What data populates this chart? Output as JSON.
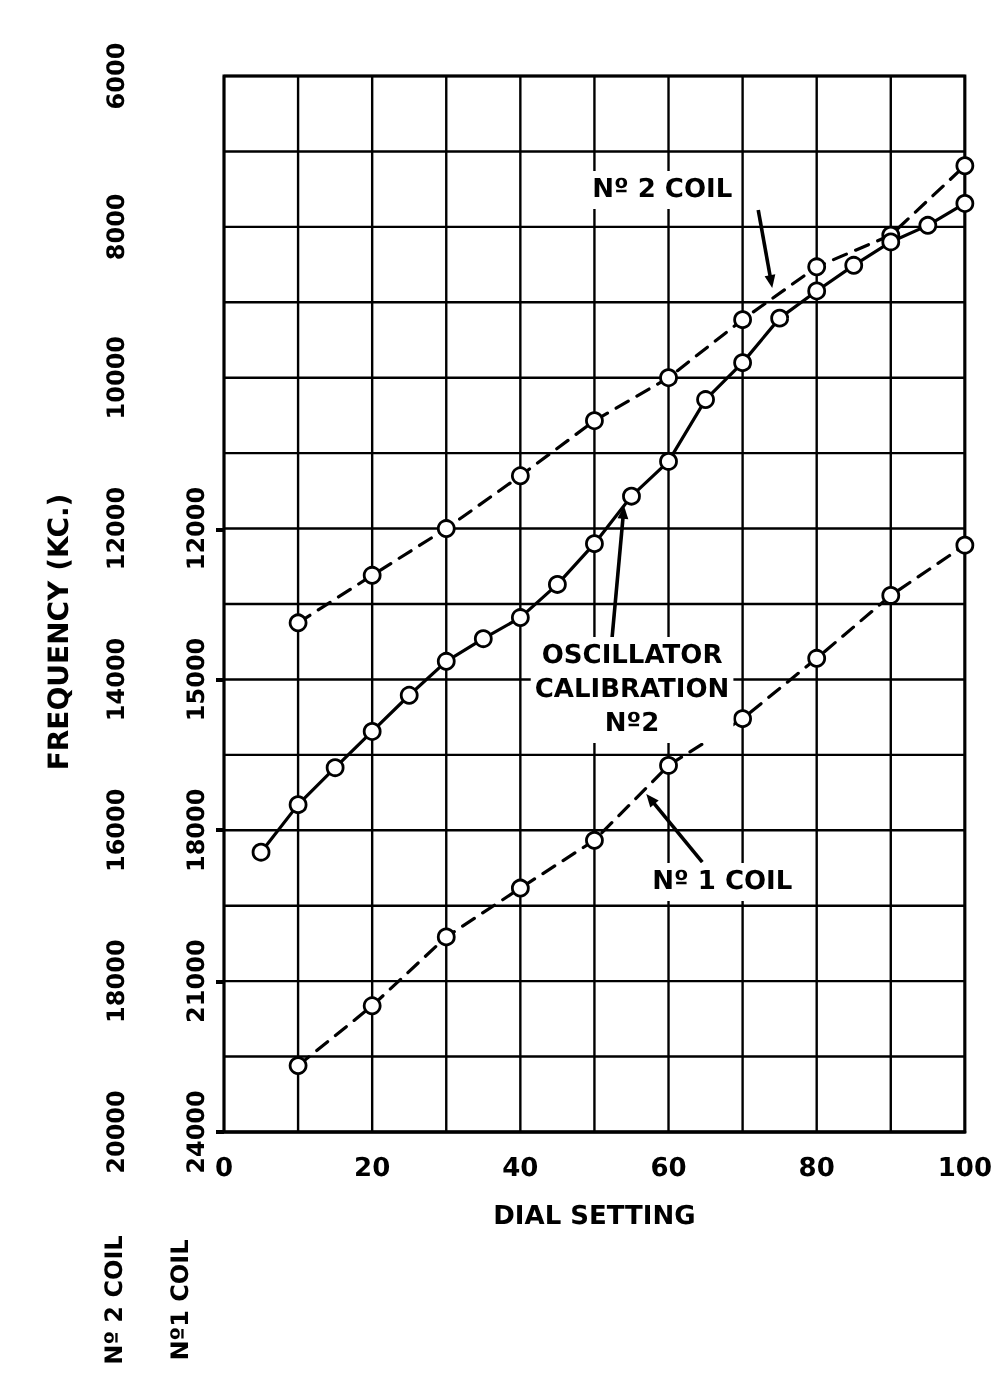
{
  "chart_data": {
    "type": "line",
    "xlabel": "DIAL SETTING",
    "ylabel": "FREQUENCY (KC.)",
    "annotations": [
      "Nº 2 COIL",
      "Nº1 COIL",
      {
        "text": "Nº 2 COIL",
        "x": 74,
        "y": 8810
      },
      {
        "text": "OSCILLATOR\nCALIBRATION\nNº2",
        "x": 54,
        "y": 11700
      },
      {
        "text": "Nº 1 COIL",
        "x": 57,
        "y": 15520
      }
    ],
    "xlim": [
      0,
      100
    ],
    "xticks": [
      0,
      {
        "value": 10,
        "label": null
      },
      20,
      {
        "value": 30,
        "label": null
      },
      40,
      {
        "value": 50,
        "label": null
      },
      60,
      {
        "value": 70,
        "label": null
      },
      80,
      {
        "value": 90,
        "label": null
      },
      100
    ],
    "ylim": [
      20000,
      6000
    ],
    "yticks": [
      6000,
      {
        "value": 7000,
        "label": null
      },
      8000,
      {
        "value": 9000,
        "label": null
      },
      10000,
      {
        "value": 11000,
        "label": null
      },
      12000,
      {
        "value": 13000,
        "label": null
      },
      14000,
      {
        "value": 15000,
        "label": null
      },
      16000,
      {
        "value": 17000,
        "label": null
      },
      18000,
      {
        "value": 19000,
        "label": null
      },
      20000
    ],
    "y2lim": [
      24000,
      3000
    ],
    "y2ticks": [
      12000,
      15000,
      18000,
      21000,
      24000
    ],
    "grid": true,
    "marker": "circle",
    "series": [
      {
        "color": "#000000",
        "line_style": "dashed",
        "x": [
          10,
          20,
          30,
          40,
          50,
          60,
          70,
          80,
          90,
          100
        ],
        "values": [
          13250,
          12620,
          12000,
          11300,
          10570,
          10000,
          9230,
          8530,
          8110,
          7190
        ]
      },
      {
        "color": "#000000",
        "line_style": "solid",
        "x": [
          5,
          10,
          15,
          20,
          25,
          30,
          35,
          40,
          45,
          50,
          55,
          60,
          65,
          70,
          75,
          80,
          85,
          90,
          95,
          100
        ],
        "values": [
          16290,
          15660,
          15170,
          14690,
          14210,
          13760,
          13460,
          13180,
          12740,
          12200,
          11570,
          11110,
          10290,
          9800,
          9210,
          8850,
          8510,
          8200,
          7980,
          7690
        ]
      },
      {
        "color": "#000000",
        "line_style": "dashed",
        "axis": "y2",
        "x": [
          10,
          20,
          30,
          40,
          50,
          60,
          70,
          80,
          90,
          100
        ],
        "values": [
          22680,
          21490,
          20120,
          19150,
          18200,
          16710,
          15780,
          14580,
          13330,
          12330
        ]
      }
    ]
  }
}
